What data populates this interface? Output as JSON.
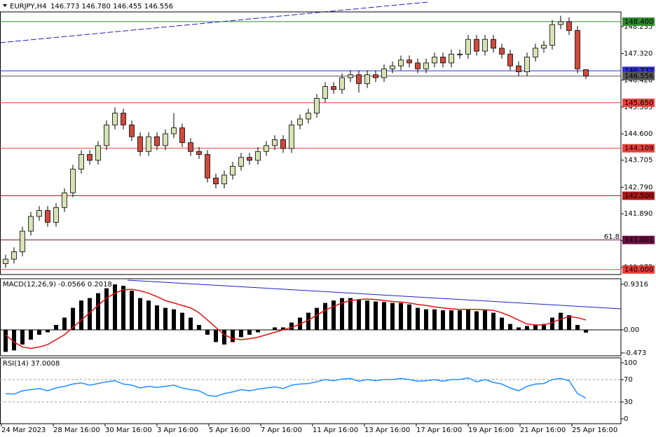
{
  "chart_data": [
    {
      "type": "candlestick",
      "title": "EURJPY,H4",
      "subtitle": "146.773 146.780 146.455 146.556",
      "open": [
        140.2,
        140.35,
        140.6,
        141.3,
        141.8,
        142.0,
        141.6,
        142.1,
        142.6,
        143.4,
        143.9,
        143.7,
        144.2,
        144.9,
        145.3,
        144.9,
        144.5,
        144.0,
        144.5,
        144.2,
        144.6,
        144.8,
        144.3,
        144.0,
        143.9,
        143.1,
        142.9,
        143.2,
        143.5,
        143.8,
        143.7,
        144.0,
        144.2,
        144.4,
        144.1,
        144.9,
        145.1,
        145.3,
        145.8,
        146.2,
        146.1,
        146.5,
        146.6,
        146.3,
        146.6,
        146.5,
        146.8,
        146.9,
        147.1,
        147.0,
        146.8,
        147.0,
        147.2,
        147.0,
        147.3,
        147.3,
        147.8,
        147.4,
        147.8,
        147.5,
        147.3,
        146.9,
        146.7,
        147.2,
        147.5,
        147.6,
        148.3,
        148.4,
        148.1,
        146.773
      ],
      "high": [
        140.5,
        140.75,
        141.45,
        141.95,
        142.15,
        142.15,
        142.25,
        142.75,
        143.55,
        144.05,
        144.05,
        144.35,
        145.05,
        145.5,
        145.45,
        145.05,
        144.65,
        144.65,
        144.65,
        144.75,
        145.3,
        144.95,
        144.45,
        144.15,
        144.05,
        143.25,
        143.35,
        143.65,
        143.95,
        143.95,
        144.15,
        144.35,
        144.55,
        144.55,
        145.05,
        145.25,
        145.45,
        145.95,
        146.35,
        146.35,
        146.65,
        146.75,
        146.75,
        146.75,
        146.75,
        146.95,
        147.05,
        147.25,
        147.25,
        147.15,
        147.15,
        147.35,
        147.35,
        147.45,
        147.45,
        147.95,
        147.95,
        147.95,
        147.95,
        147.65,
        147.45,
        147.05,
        147.35,
        147.65,
        147.75,
        148.45,
        148.6,
        148.55,
        148.25,
        146.78
      ],
      "low": [
        140.05,
        140.2,
        140.45,
        141.15,
        141.65,
        141.45,
        141.45,
        141.95,
        142.45,
        143.25,
        143.55,
        143.55,
        144.05,
        144.75,
        144.75,
        144.35,
        143.85,
        143.85,
        144.05,
        144.05,
        144.45,
        144.15,
        143.85,
        143.75,
        142.95,
        142.75,
        142.75,
        143.05,
        143.35,
        143.55,
        143.55,
        143.85,
        144.05,
        143.95,
        143.95,
        144.75,
        144.95,
        145.15,
        145.65,
        145.95,
        145.95,
        146.35,
        146.0,
        146.15,
        146.35,
        146.35,
        146.65,
        146.75,
        146.85,
        146.65,
        146.65,
        146.85,
        146.85,
        146.85,
        147.15,
        147.15,
        147.25,
        147.25,
        147.35,
        147.15,
        146.75,
        146.55,
        146.55,
        147.05,
        147.35,
        147.45,
        148.15,
        147.95,
        146.65,
        146.455
      ],
      "close": [
        140.35,
        140.6,
        141.3,
        141.8,
        142.0,
        141.6,
        142.1,
        142.6,
        143.4,
        143.9,
        143.7,
        144.2,
        144.9,
        145.3,
        144.9,
        144.5,
        144.0,
        144.5,
        144.2,
        144.6,
        144.8,
        144.3,
        144.0,
        143.9,
        143.1,
        142.9,
        143.2,
        143.5,
        143.8,
        143.7,
        144.0,
        144.2,
        144.4,
        144.1,
        144.9,
        145.1,
        145.3,
        145.8,
        146.2,
        146.1,
        146.5,
        146.6,
        146.3,
        146.6,
        146.5,
        146.8,
        146.9,
        147.1,
        147.0,
        146.8,
        147.0,
        147.2,
        147.0,
        147.3,
        147.3,
        147.8,
        147.4,
        147.8,
        147.5,
        147.3,
        146.9,
        146.7,
        147.2,
        147.5,
        147.6,
        148.3,
        148.4,
        148.1,
        146.8,
        146.556
      ],
      "up_color": "#d6e3b4",
      "down_color": "#cf4a3c",
      "ylim": [
        139.83,
        148.73
      ],
      "yticks": [
        148.235,
        {
          "value": 147.32,
          "label": "147.320"
        },
        {
          "value": 146.42,
          "label": "146.420"
        },
        145.505,
        {
          "value": 144.6,
          "label": "144.600"
        },
        143.705,
        {
          "value": 142.79,
          "label": "142.790"
        },
        {
          "value": 141.89,
          "label": "141.890"
        },
        140.975,
        140.075
      ],
      "levels": [
        {
          "value": 148.4,
          "label": "148.400",
          "color": "#2e8b2e"
        },
        {
          "value": 146.732,
          "label": "146.732",
          "color": "#2f2fd8"
        },
        {
          "value": 146.556,
          "label": "146.556",
          "color": "#5a5a5a"
        },
        {
          "value": 145.65,
          "label": "145.650",
          "color": "#e8403a"
        },
        {
          "value": 144.109,
          "label": "144.109",
          "color": "#e8403a"
        },
        {
          "value": 142.5,
          "label": "142.500",
          "color": "#b01818"
        },
        {
          "value": 141.001,
          "label": "141.001",
          "color": "#6a1040"
        },
        {
          "value": 140.0,
          "label": "140.000",
          "color": "#e8403a"
        }
      ],
      "annotation": "61.8",
      "x_labels": [
        "24 Mar 2023",
        "28 Mar 16:00",
        "30 Mar 16:00",
        "3 Apr 16:00",
        "5 Apr 16:00",
        "7 Apr 16:00",
        "11 Apr 16:00",
        "13 Apr 16:00",
        "17 Apr 16:00",
        "19 Apr 16:00",
        "21 Apr 16:00",
        "25 Apr 16:00"
      ]
    },
    {
      "type": "macd",
      "title": "MACD(12,26,9) -0.0566 0.2018",
      "values": [
        -0.45,
        -0.42,
        -0.3,
        -0.2,
        -0.1,
        -0.05,
        0.1,
        0.25,
        0.45,
        0.6,
        0.65,
        0.75,
        0.85,
        0.93,
        0.9,
        0.8,
        0.65,
        0.6,
        0.5,
        0.45,
        0.42,
        0.35,
        0.25,
        0.1,
        -0.1,
        -0.25,
        -0.3,
        -0.25,
        -0.15,
        -0.1,
        -0.05,
        0.0,
        0.05,
        0.05,
        0.15,
        0.25,
        0.35,
        0.45,
        0.55,
        0.6,
        0.65,
        0.65,
        0.62,
        0.6,
        0.58,
        0.57,
        0.55,
        0.55,
        0.52,
        0.45,
        0.42,
        0.42,
        0.4,
        0.4,
        0.4,
        0.42,
        0.38,
        0.4,
        0.35,
        0.25,
        0.12,
        0.05,
        0.08,
        0.1,
        0.12,
        0.25,
        0.35,
        0.3,
        0.1,
        -0.0566
      ],
      "signal": [
        -0.1,
        -0.25,
        -0.35,
        -0.38,
        -0.35,
        -0.3,
        -0.2,
        -0.1,
        0.05,
        0.2,
        0.35,
        0.5,
        0.65,
        0.75,
        0.82,
        0.83,
        0.8,
        0.75,
        0.68,
        0.6,
        0.55,
        0.5,
        0.45,
        0.35,
        0.2,
        0.05,
        -0.1,
        -0.18,
        -0.2,
        -0.18,
        -0.15,
        -0.1,
        -0.05,
        0.0,
        0.05,
        0.12,
        0.2,
        0.3,
        0.4,
        0.48,
        0.55,
        0.6,
        0.62,
        0.63,
        0.62,
        0.6,
        0.58,
        0.57,
        0.55,
        0.52,
        0.5,
        0.47,
        0.45,
        0.43,
        0.42,
        0.42,
        0.42,
        0.41,
        0.4,
        0.35,
        0.28,
        0.2,
        0.12,
        0.1,
        0.1,
        0.15,
        0.22,
        0.27,
        0.25,
        0.2018
      ],
      "color": "#000000",
      "signal_color": "#e01010",
      "ylim": [
        -0.53,
        1.046
      ],
      "yticks": [
        0.9316,
        {
          "value": 0,
          "label": "0.00"
        },
        -0.473
      ]
    },
    {
      "type": "rsi",
      "title": "RSI(14) 37.0008",
      "values": [
        45,
        44,
        50,
        52,
        54,
        50,
        55,
        58,
        62,
        64,
        60,
        63,
        66,
        68,
        62,
        60,
        55,
        58,
        56,
        58,
        60,
        55,
        52,
        50,
        42,
        40,
        45,
        48,
        52,
        50,
        53,
        55,
        57,
        54,
        60,
        62,
        63,
        66,
        70,
        68,
        71,
        72,
        67,
        70,
        68,
        70,
        70,
        72,
        70,
        67,
        68,
        70,
        67,
        70,
        70,
        73,
        66,
        70,
        65,
        62,
        55,
        50,
        58,
        62,
        63,
        70,
        72,
        68,
        45,
        37.0008
      ],
      "color": "#1e90ff",
      "ylim": [
        -8.75,
        108.75
      ],
      "yticks": [
        100,
        70,
        30,
        0
      ]
    }
  ]
}
